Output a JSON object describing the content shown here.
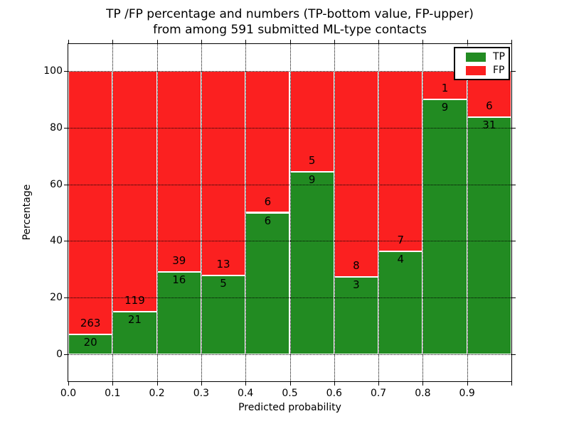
{
  "chart_data": {
    "type": "bar",
    "stacked": true,
    "title_lines": [
      "TP /FP percentage and numbers (TP-bottom value, FP-upper)",
      "from among 591 submitted ML-type contacts"
    ],
    "xlabel": "Predicted probability",
    "ylabel": "Percentage",
    "total_contacts": 591,
    "legend": [
      {
        "label": "TP",
        "color": "#228b22"
      },
      {
        "label": "FP",
        "color": "#fb2020"
      }
    ],
    "colors": {
      "tp": "#228b22",
      "fp": "#fb2020",
      "grid": "#000000",
      "background": "#ffffff"
    },
    "grid": "dotted",
    "x_range": [
      0.0,
      1.0
    ],
    "y_view_range": [
      -9.5,
      109.5
    ],
    "x_tick_values": [
      0.0,
      0.1,
      0.2,
      0.3,
      0.4,
      0.5,
      0.6,
      0.7,
      0.8,
      0.9,
      1.0
    ],
    "x_tick_labels": [
      "0.0",
      "0.1",
      "0.2",
      "0.3",
      "0.4",
      "0.5",
      "0.6",
      "0.7",
      "0.8",
      "0.9"
    ],
    "y_tick_values": [
      0,
      20,
      40,
      60,
      80,
      100
    ],
    "y_tick_labels": [
      "0",
      "20",
      "40",
      "60",
      "80",
      "100"
    ],
    "bins": [
      {
        "range": [
          0.0,
          0.1
        ],
        "tp": 20,
        "fp": 263
      },
      {
        "range": [
          0.1,
          0.2
        ],
        "tp": 21,
        "fp": 119
      },
      {
        "range": [
          0.2,
          0.3
        ],
        "tp": 16,
        "fp": 39
      },
      {
        "range": [
          0.3,
          0.4
        ],
        "tp": 5,
        "fp": 13
      },
      {
        "range": [
          0.4,
          0.5
        ],
        "tp": 6,
        "fp": 6
      },
      {
        "range": [
          0.5,
          0.6
        ],
        "tp": 9,
        "fp": 5
      },
      {
        "range": [
          0.6,
          0.7
        ],
        "tp": 3,
        "fp": 8
      },
      {
        "range": [
          0.7,
          0.8
        ],
        "tp": 4,
        "fp": 7
      },
      {
        "range": [
          0.8,
          0.9
        ],
        "tp": 9,
        "fp": 1
      },
      {
        "range": [
          0.9,
          1.0
        ],
        "tp": 31,
        "fp": 6
      }
    ]
  }
}
